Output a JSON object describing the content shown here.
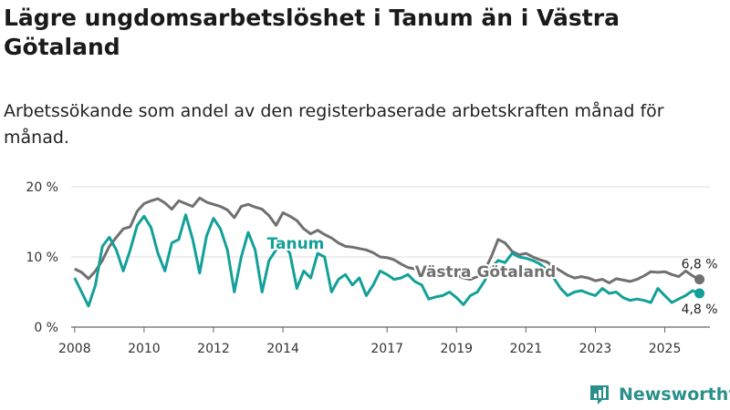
{
  "title": "Lägre ungdomsarbetslöshet i Tanum än i Västra Götaland",
  "subtitle": "Arbetssökande som andel av den registerbaserade arbetskraften månad för månad.",
  "brand": "Newsworthy",
  "colors": {
    "tanum": "#13a099",
    "vg": "#707070",
    "grid": "#dcdcdc",
    "brand": "#2a8f8a"
  },
  "chart_data": {
    "type": "line",
    "ylim": [
      0,
      20
    ],
    "xlim": [
      2007.9,
      2026.3
    ],
    "y_ticks": [
      {
        "value": 0,
        "label": "0 %"
      },
      {
        "value": 10,
        "label": "10 %"
      },
      {
        "value": 20,
        "label": "20 %"
      }
    ],
    "x_ticks": [
      {
        "value": 2008,
        "label": "2008"
      },
      {
        "value": 2010,
        "label": "2010"
      },
      {
        "value": 2012,
        "label": "2012"
      },
      {
        "value": 2014,
        "label": "2014"
      },
      {
        "value": 2017,
        "label": "2017"
      },
      {
        "value": 2019,
        "label": "2019"
      },
      {
        "value": 2021,
        "label": "2021"
      },
      {
        "value": 2023,
        "label": "2023"
      },
      {
        "value": 2025,
        "label": "2025"
      }
    ],
    "series": [
      {
        "name": "Västra Götaland",
        "label": "Västra Götaland",
        "end_label": "6,8 %",
        "x": [
          2008.0,
          2008.2,
          2008.4,
          2008.6,
          2008.8,
          2009.0,
          2009.2,
          2009.4,
          2009.6,
          2009.8,
          2010.0,
          2010.2,
          2010.4,
          2010.6,
          2010.8,
          2011.0,
          2011.2,
          2011.4,
          2011.6,
          2011.8,
          2012.0,
          2012.2,
          2012.4,
          2012.6,
          2012.8,
          2013.0,
          2013.2,
          2013.4,
          2013.6,
          2013.8,
          2014.0,
          2014.2,
          2014.4,
          2014.6,
          2014.8,
          2015.0,
          2015.2,
          2015.4,
          2015.6,
          2015.8,
          2016.0,
          2016.2,
          2016.4,
          2016.6,
          2016.8,
          2017.0,
          2017.2,
          2017.4,
          2017.6,
          2017.8,
          2018.0,
          2018.2,
          2018.4,
          2018.6,
          2018.8,
          2019.0,
          2019.2,
          2019.4,
          2019.6,
          2019.8,
          2020.0,
          2020.2,
          2020.4,
          2020.6,
          2020.8,
          2021.0,
          2021.2,
          2021.4,
          2021.6,
          2021.8,
          2022.0,
          2022.2,
          2022.4,
          2022.6,
          2022.8,
          2023.0,
          2023.2,
          2023.4,
          2023.6,
          2023.8,
          2024.0,
          2024.2,
          2024.4,
          2024.6,
          2024.8,
          2025.0,
          2025.2,
          2025.4,
          2025.6,
          2025.8,
          2026.0
        ],
        "y": [
          8.3,
          7.8,
          6.9,
          8.0,
          9.5,
          11.5,
          12.8,
          14.0,
          14.3,
          16.5,
          17.6,
          18.0,
          18.3,
          17.7,
          16.8,
          18.0,
          17.6,
          17.2,
          18.4,
          17.8,
          17.5,
          17.2,
          16.7,
          15.6,
          17.2,
          17.5,
          17.1,
          16.8,
          15.9,
          14.5,
          16.3,
          15.8,
          15.2,
          14.0,
          13.3,
          13.8,
          13.2,
          12.7,
          12.0,
          11.5,
          11.4,
          11.2,
          11.0,
          10.6,
          10.0,
          9.9,
          9.6,
          9.0,
          8.5,
          8.3,
          7.9,
          7.7,
          7.6,
          7.5,
          7.2,
          7.4,
          7.0,
          6.8,
          7.2,
          8.0,
          10.0,
          12.5,
          12.0,
          10.8,
          10.3,
          10.5,
          10.0,
          9.6,
          9.3,
          8.6,
          8.0,
          7.4,
          7.0,
          7.2,
          7.0,
          6.6,
          6.8,
          6.3,
          6.9,
          6.7,
          6.5,
          6.8,
          7.3,
          7.9,
          7.8,
          7.9,
          7.5,
          7.2,
          8.0,
          7.3,
          6.8
        ]
      },
      {
        "name": "Tanum",
        "label": "Tanum",
        "end_label": "4,8 %",
        "x": [
          2008.0,
          2008.2,
          2008.4,
          2008.6,
          2008.8,
          2009.0,
          2009.2,
          2009.4,
          2009.6,
          2009.8,
          2010.0,
          2010.2,
          2010.4,
          2010.6,
          2010.8,
          2011.0,
          2011.2,
          2011.4,
          2011.6,
          2011.8,
          2012.0,
          2012.2,
          2012.4,
          2012.6,
          2012.8,
          2013.0,
          2013.2,
          2013.4,
          2013.6,
          2013.8,
          2014.0,
          2014.2,
          2014.4,
          2014.6,
          2014.8,
          2015.0,
          2015.2,
          2015.4,
          2015.6,
          2015.8,
          2016.0,
          2016.2,
          2016.4,
          2016.6,
          2016.8,
          2017.0,
          2017.2,
          2017.4,
          2017.6,
          2017.8,
          2018.0,
          2018.2,
          2018.4,
          2018.6,
          2018.8,
          2019.0,
          2019.2,
          2019.4,
          2019.6,
          2019.8,
          2020.0,
          2020.2,
          2020.4,
          2020.6,
          2020.8,
          2021.0,
          2021.2,
          2021.4,
          2021.6,
          2021.8,
          2022.0,
          2022.2,
          2022.4,
          2022.6,
          2022.8,
          2023.0,
          2023.2,
          2023.4,
          2023.6,
          2023.8,
          2024.0,
          2024.2,
          2024.4,
          2024.6,
          2024.8,
          2025.0,
          2025.2,
          2025.4,
          2025.6,
          2025.8,
          2026.0
        ],
        "y": [
          7.0,
          5.0,
          3.0,
          6.0,
          11.5,
          12.8,
          11.0,
          8.0,
          11.0,
          14.5,
          15.8,
          14.2,
          10.5,
          8.0,
          12.0,
          12.5,
          16.0,
          12.5,
          7.7,
          13.0,
          15.5,
          14.0,
          11.0,
          5.0,
          10.0,
          13.5,
          11.0,
          5.0,
          9.5,
          11.0,
          12.0,
          10.5,
          5.5,
          8.0,
          7.0,
          10.5,
          10.0,
          5.0,
          6.8,
          7.5,
          6.0,
          7.0,
          4.5,
          6.0,
          8.0,
          7.5,
          6.8,
          7.0,
          7.5,
          6.5,
          6.0,
          4.0,
          4.3,
          4.5,
          5.0,
          4.2,
          3.2,
          4.5,
          5.0,
          6.5,
          8.5,
          9.5,
          9.2,
          10.5,
          10.0,
          9.8,
          9.5,
          9.0,
          8.2,
          7.0,
          5.5,
          4.5,
          5.0,
          5.2,
          4.8,
          4.5,
          5.5,
          4.8,
          5.0,
          4.2,
          3.8,
          4.0,
          3.8,
          3.5,
          5.5,
          4.5,
          3.5,
          4.0,
          4.5,
          5.2,
          4.8
        ]
      }
    ]
  }
}
